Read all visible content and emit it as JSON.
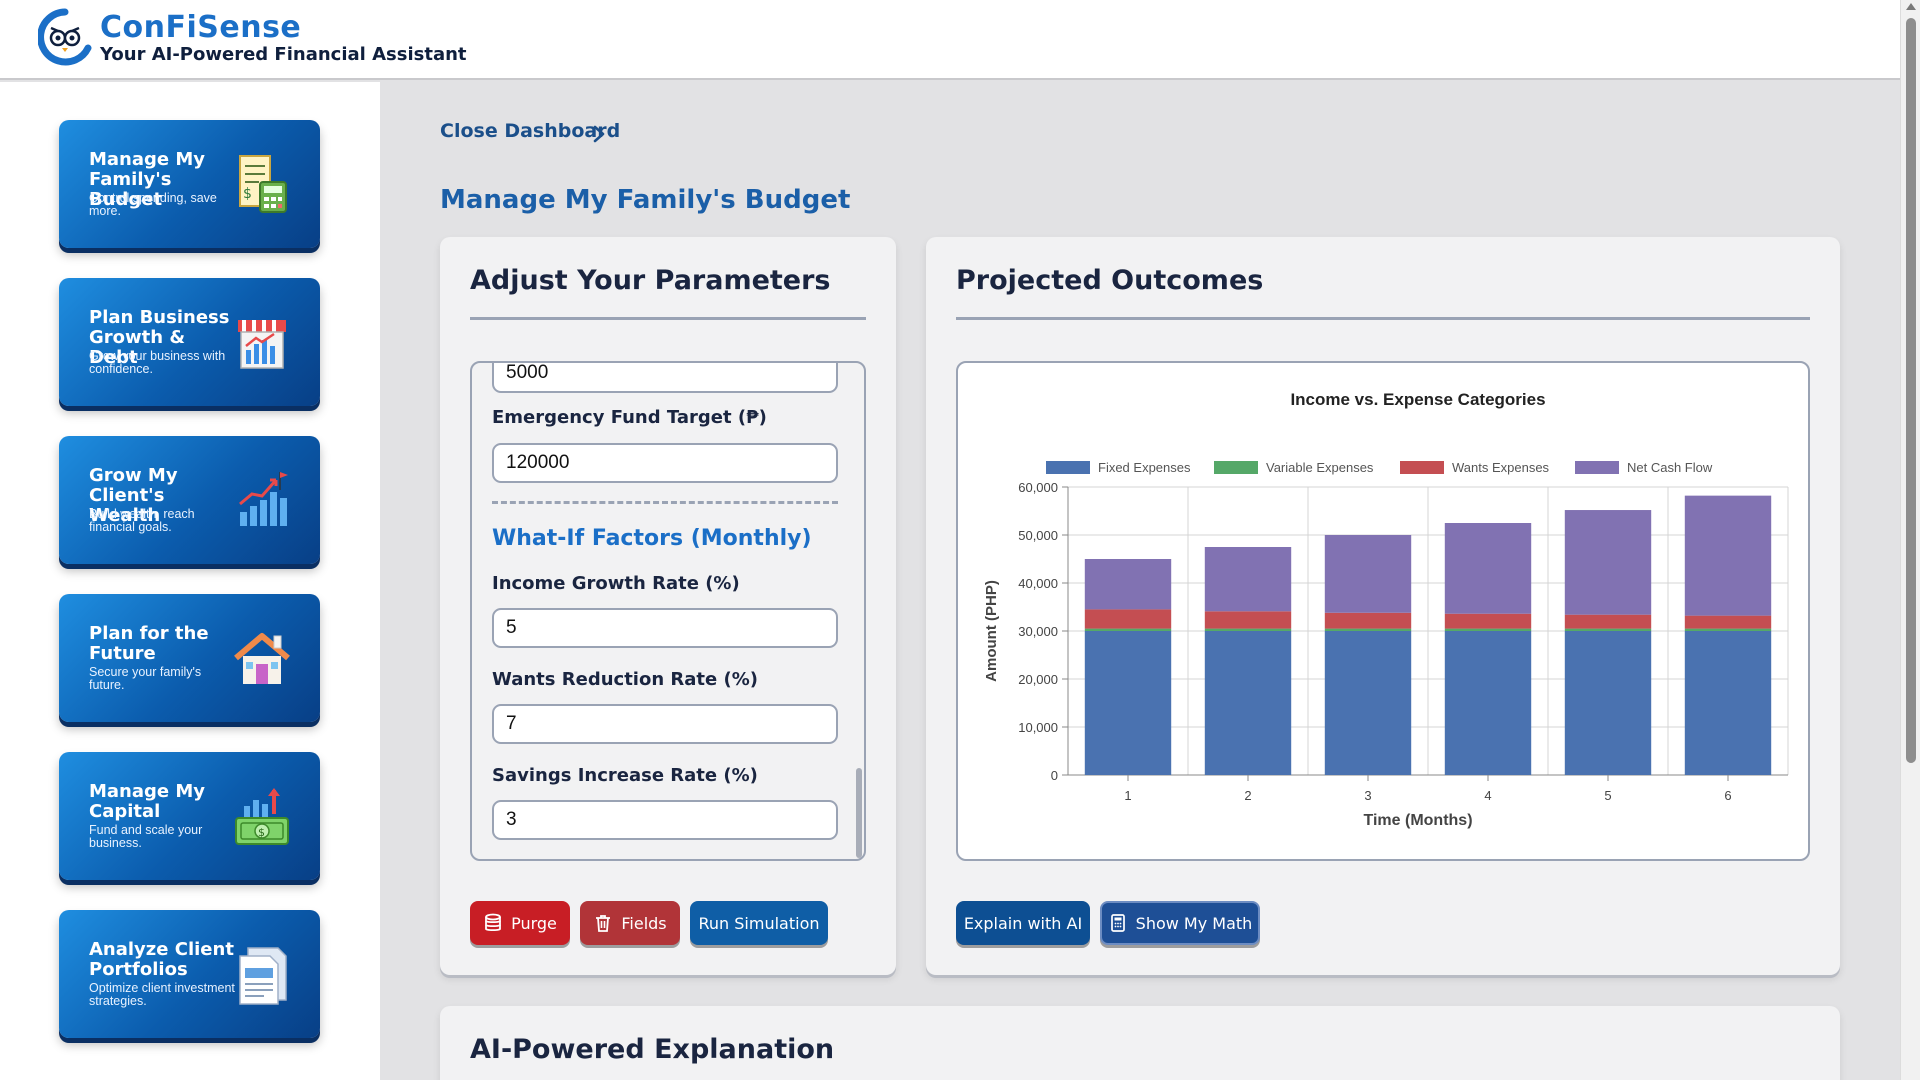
{
  "brand": {
    "name": "ConFiSense",
    "tagline": "Your AI-Powered Financial Assistant"
  },
  "sidebar": {
    "items": [
      {
        "title": "Manage My Family's Budget",
        "desc": "Control spending, save more.",
        "icon": "budget-receipt-calculator-icon"
      },
      {
        "title": "Plan Business Growth & Debt",
        "desc": "Grow your business with confidence.",
        "icon": "storefront-chart-icon"
      },
      {
        "title": "Grow My Client's Wealth",
        "desc": "Build wealth, reach financial goals.",
        "icon": "growth-bars-flag-icon"
      },
      {
        "title": "Plan for the Future",
        "desc": "Secure your family's future.",
        "icon": "house-icon"
      },
      {
        "title": "Manage My Capital",
        "desc": "Fund and scale your business.",
        "icon": "cash-growth-icon"
      },
      {
        "title": "Analyze Client Portfolios",
        "desc": "Optimize client investment strategies.",
        "icon": "portfolio-document-icon"
      }
    ]
  },
  "breadcrumb": {
    "label": "Close Dashboard"
  },
  "page": {
    "title": "Manage My Family's Budget"
  },
  "params": {
    "heading": "Adjust Your Parameters",
    "partial_value": "5000",
    "emergency_label": "Emergency Fund Target (₱)",
    "emergency_value": "120000",
    "whatif_heading": "What-If Factors (Monthly)",
    "income_growth_label": "Income Growth Rate (%)",
    "income_growth_value": "5",
    "wants_reduction_label": "Wants Reduction Rate (%)",
    "wants_reduction_value": "7",
    "savings_increase_label": "Savings Increase Rate (%)",
    "savings_increase_value": "3"
  },
  "actions": {
    "purge": "Purge",
    "fields": "Fields",
    "run": "Run Simulation"
  },
  "outcomes": {
    "heading": "Projected Outcomes",
    "explain": "Explain with AI",
    "math": "Show My Math"
  },
  "ai_panel": {
    "heading": "AI-Powered Explanation"
  },
  "chart_data": {
    "type": "bar",
    "stacked": true,
    "title": "Income vs. Expense Categories",
    "xlabel": "Time (Months)",
    "ylabel": "Amount (PHP)",
    "categories": [
      "1",
      "2",
      "3",
      "4",
      "5",
      "6"
    ],
    "ylim": [
      0,
      60000
    ],
    "yticks": [
      0,
      10000,
      20000,
      30000,
      40000,
      50000,
      60000
    ],
    "ytick_labels": [
      "0",
      "10,000",
      "20,000",
      "30,000",
      "40,000",
      "50,000",
      "60,000"
    ],
    "grid": true,
    "legend": "top",
    "series": [
      {
        "name": "Fixed Expenses",
        "color": "#4a72b0",
        "values": [
          30000,
          30000,
          30000,
          30000,
          30000,
          30000
        ]
      },
      {
        "name": "Variable Expenses",
        "color": "#55a868",
        "values": [
          500,
          500,
          500,
          500,
          500,
          500
        ]
      },
      {
        "name": "Wants Expenses",
        "color": "#c44e52",
        "values": [
          4000,
          3600,
          3300,
          3100,
          2900,
          2700
        ]
      },
      {
        "name": "Net Cash Flow",
        "color": "#8172b2",
        "values": [
          10500,
          13400,
          16200,
          18900,
          21800,
          25000
        ]
      }
    ]
  }
}
